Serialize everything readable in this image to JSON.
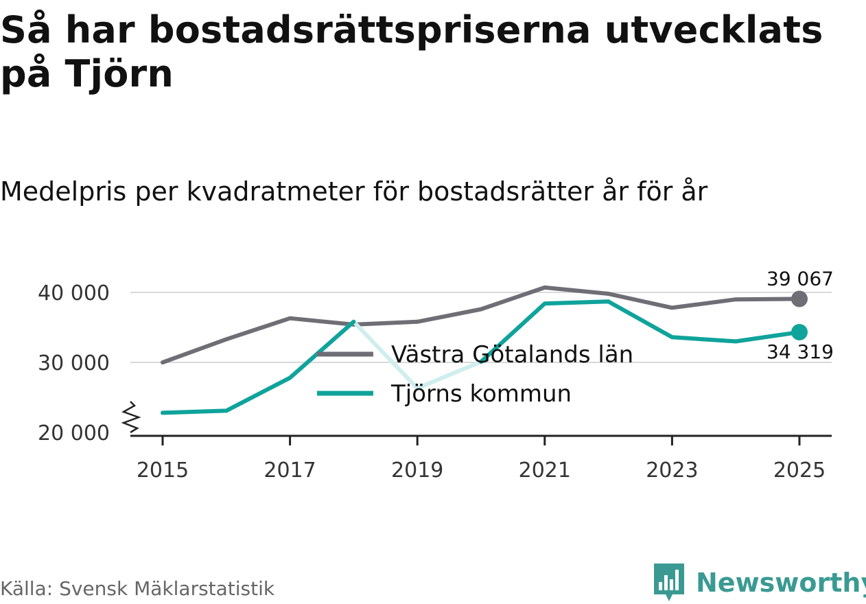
{
  "title": "Så har bostadsrättspriserna utvecklats på Tjörn",
  "subtitle": "Medelpris per kvadratmeter för bostadsrätter år för år",
  "source": "Källa: Svensk Mäklarstatistik",
  "brand": {
    "name": "Newsworthy",
    "color": "#3a9a93",
    "icon": "newsworthy-logo-icon"
  },
  "colors": {
    "vg": "#6f6e75",
    "tjorn": "#0fa39b",
    "tjorn_light": "#cfeeed",
    "grid": "#d9d9d9",
    "axis": "#222222"
  },
  "chart_data": {
    "type": "line",
    "title": "Så har bostadsrättspriserna utvecklats på Tjörn",
    "subtitle": "Medelpris per kvadratmeter för bostadsrätter år för år",
    "xlabel": "",
    "ylabel": "",
    "x": [
      2015,
      2016,
      2017,
      2018,
      2019,
      2020,
      2021,
      2022,
      2023,
      2024,
      2025
    ],
    "x_ticks": [
      2015,
      2017,
      2019,
      2021,
      2023,
      2025
    ],
    "x_tick_labels": [
      "2015",
      "2017",
      "2019",
      "2021",
      "2023",
      "2025"
    ],
    "ylim": [
      20000,
      41000
    ],
    "y_ticks": [
      20000,
      30000,
      40000
    ],
    "y_tick_labels": [
      "20 000",
      "30 000",
      "40 000"
    ],
    "axis_break": true,
    "grid": true,
    "legend_position": "center",
    "series": [
      {
        "name": "Västra Götalands län",
        "values": [
          30000,
          33300,
          36300,
          35400,
          35800,
          37600,
          40700,
          39800,
          37800,
          39000,
          39067
        ],
        "end_label": "39 067"
      },
      {
        "name": "Tjörns kommun",
        "values": [
          22800,
          23100,
          27800,
          35800,
          26300,
          30100,
          38400,
          38700,
          33600,
          33000,
          34319
        ],
        "end_label": "34 319",
        "faded_segment_years": [
          2018,
          2019,
          2020
        ]
      }
    ]
  }
}
